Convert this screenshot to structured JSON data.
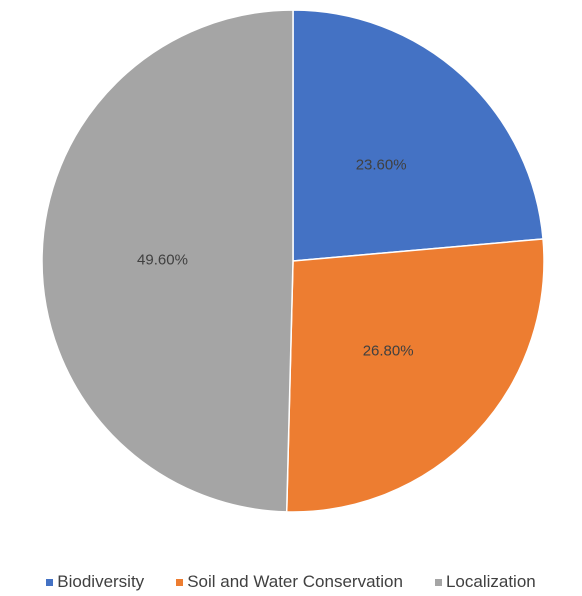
{
  "chart_data": {
    "type": "pie",
    "title": "",
    "categories": [
      "Biodiversity",
      "Soil and Water Conservation",
      "Localization"
    ],
    "values": [
      23.6,
      26.8,
      49.6
    ],
    "labels": [
      "23.60%",
      "26.80%",
      "49.60%"
    ],
    "colors": [
      "#4472C4",
      "#ED7D31",
      "#A5A5A5"
    ],
    "legend_position": "bottom",
    "start": "12 o'clock, clockwise"
  }
}
